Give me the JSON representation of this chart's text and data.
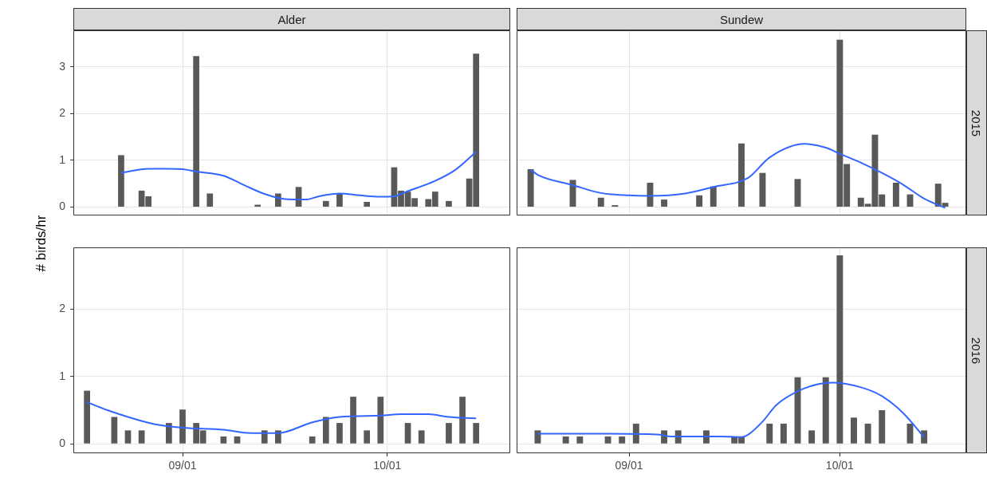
{
  "chart_data": [
    {
      "type": "bar",
      "title": "Alder",
      "ylabel": "# birds/hr",
      "grid": true,
      "tick_labels": "y",
      "x": [
        "--08-23",
        "--08-26",
        "--08-27",
        "--09-03",
        "--09-05",
        "--09-12",
        "--09-15",
        "--09-18",
        "--09-22",
        "--09-24",
        "--09-28",
        "--10-02",
        "--10-03",
        "--10-04",
        "--10-05",
        "--10-07",
        "--10-08",
        "--10-10",
        "--10-13",
        "--10-14"
      ],
      "xlim": [
        "--08-16",
        "--10-19"
      ],
      "xticks": [
        "--09-01",
        "--10-01"
      ],
      "ylim": [
        -0.18,
        3.78
      ],
      "yticks": [
        0,
        1,
        2,
        3
      ],
      "series": [
        {
          "color": "#595959",
          "values": [
            1.11,
            0.35,
            0.23,
            3.23,
            0.29,
            0.05,
            0.29,
            0.43,
            0.13,
            0.28,
            0.11,
            0.85,
            0.35,
            0.33,
            0.19,
            0.17,
            0.33,
            0.13,
            0.61,
            3.28
          ]
        },
        {
          "type": "line",
          "color": "#3366ff",
          "x": [
            "--08-23",
            "--08-27",
            "--08-30",
            "--09-01",
            "--09-03",
            "--09-07",
            "--09-10",
            "--09-13",
            "--09-16",
            "--09-19",
            "--09-21",
            "--09-24",
            "--09-27",
            "--09-30",
            "--10-02",
            "--10-04",
            "--10-08",
            "--10-11",
            "--10-14"
          ],
          "values": [
            0.73,
            0.82,
            0.82,
            0.81,
            0.76,
            0.67,
            0.47,
            0.28,
            0.17,
            0.16,
            0.23,
            0.29,
            0.25,
            0.22,
            0.23,
            0.34,
            0.56,
            0.8,
            1.18
          ]
        }
      ]
    },
    {
      "type": "bar",
      "title": "Sundew",
      "y2label": "2015",
      "grid": true,
      "tick_labels": false,
      "x": [
        "--08-18",
        "--08-24",
        "--08-28",
        "--08-30",
        "--09-04",
        "--09-06",
        "--09-11",
        "--09-13",
        "--09-17",
        "--09-20",
        "--09-25",
        "--10-01",
        "--10-02",
        "--10-04",
        "--10-05",
        "--10-06",
        "--10-07",
        "--10-09",
        "--10-11",
        "--10-15",
        "--10-16"
      ],
      "xlim": [
        "--08-16",
        "--10-19"
      ],
      "xticks": [
        "--09-01",
        "--10-01"
      ],
      "ylim": [
        -0.18,
        3.78
      ],
      "yticks": [
        0,
        1,
        2,
        3
      ],
      "series": [
        {
          "color": "#595959",
          "values": [
            0.81,
            0.58,
            0.2,
            0.04,
            0.52,
            0.16,
            0.25,
            0.44,
            1.36,
            0.73,
            0.6,
            3.58,
            0.92,
            0.2,
            0.07,
            1.55,
            0.27,
            0.52,
            0.27,
            0.5,
            0.09
          ]
        },
        {
          "type": "line",
          "color": "#3366ff",
          "x": [
            "--08-18",
            "--08-19",
            "--08-24",
            "--08-28",
            "--09-01",
            "--09-04",
            "--09-09",
            "--09-13",
            "--09-18",
            "--09-21",
            "--09-26",
            "--09-29",
            "--10-01",
            "--10-04",
            "--10-07",
            "--10-10",
            "--10-13",
            "--10-16"
          ],
          "values": [
            0.8,
            0.69,
            0.47,
            0.3,
            0.25,
            0.24,
            0.29,
            0.43,
            0.63,
            1.06,
            1.35,
            1.27,
            1.14,
            0.95,
            0.73,
            0.48,
            0.18,
            -0.02
          ]
        }
      ]
    },
    {
      "type": "bar",
      "grid": true,
      "x": [
        "--08-18",
        "--08-22",
        "--08-24",
        "--08-26",
        "--08-30",
        "--09-01",
        "--09-03",
        "--09-04",
        "--09-07",
        "--09-09",
        "--09-13",
        "--09-15",
        "--09-20",
        "--09-22",
        "--09-24",
        "--09-26",
        "--09-28",
        "--09-30",
        "--10-04",
        "--10-06",
        "--10-10",
        "--10-12",
        "--10-14"
      ],
      "xlim": [
        "--08-16",
        "--10-19"
      ],
      "xticks": [
        {
          "value": "--09-01",
          "label": "09/01"
        },
        {
          "value": "--10-01",
          "label": "10/01"
        }
      ],
      "ylim": [
        -0.14,
        2.92
      ],
      "yticks": [
        0,
        1,
        2
      ],
      "series": [
        {
          "color": "#595959",
          "values": [
            0.79,
            0.4,
            0.2,
            0.2,
            0.31,
            0.51,
            0.31,
            0.2,
            0.11,
            0.11,
            0.2,
            0.2,
            0.11,
            0.4,
            0.31,
            0.7,
            0.2,
            0.7,
            0.31,
            0.2,
            0.31,
            0.7,
            0.31
          ]
        },
        {
          "type": "line",
          "color": "#3366ff",
          "x": [
            "--08-18",
            "--08-21",
            "--08-24",
            "--08-28",
            "--09-01",
            "--09-07",
            "--09-11",
            "--09-15",
            "--09-20",
            "--09-24",
            "--09-30",
            "--10-03",
            "--10-07",
            "--10-10",
            "--10-14"
          ],
          "values": [
            0.62,
            0.5,
            0.4,
            0.29,
            0.24,
            0.21,
            0.16,
            0.16,
            0.32,
            0.4,
            0.42,
            0.44,
            0.44,
            0.4,
            0.38
          ]
        }
      ]
    },
    {
      "type": "bar",
      "y2label": "2016",
      "grid": true,
      "tick_labels": "x",
      "x": [
        "--08-19",
        "--08-23",
        "--08-25",
        "--08-29",
        "--08-31",
        "--09-02",
        "--09-06",
        "--09-08",
        "--09-12",
        "--09-16",
        "--09-17",
        "--09-21",
        "--09-23",
        "--09-25",
        "--09-27",
        "--09-29",
        "--10-01",
        "--10-03",
        "--10-05",
        "--10-07",
        "--10-11",
        "--10-13"
      ],
      "xlim": [
        "--08-16",
        "--10-19"
      ],
      "xticks": [
        {
          "value": "--09-01",
          "label": "09/01"
        },
        {
          "value": "--10-01",
          "label": "10/01"
        }
      ],
      "ylim": [
        -0.14,
        2.92
      ],
      "yticks": [
        0,
        1,
        2
      ],
      "series": [
        {
          "color": "#595959",
          "values": [
            0.2,
            0.11,
            0.11,
            0.11,
            0.11,
            0.3,
            0.2,
            0.2,
            0.2,
            0.11,
            0.11,
            0.3,
            0.3,
            0.99,
            0.2,
            0.99,
            2.8,
            0.39,
            0.3,
            0.5,
            0.3,
            0.2
          ]
        },
        {
          "type": "line",
          "color": "#3366ff",
          "x": [
            "--08-19",
            "--08-28",
            "--09-05",
            "--09-07",
            "--09-14",
            "--09-17",
            "--09-18",
            "--09-20",
            "--09-22",
            "--09-25",
            "--09-28",
            "--09-30",
            "--10-04",
            "--10-07",
            "--10-10",
            "--10-13"
          ],
          "values": [
            0.15,
            0.15,
            0.14,
            0.11,
            0.11,
            0.1,
            0.14,
            0.33,
            0.58,
            0.78,
            0.89,
            0.91,
            0.84,
            0.71,
            0.46,
            0.1
          ]
        }
      ]
    }
  ]
}
